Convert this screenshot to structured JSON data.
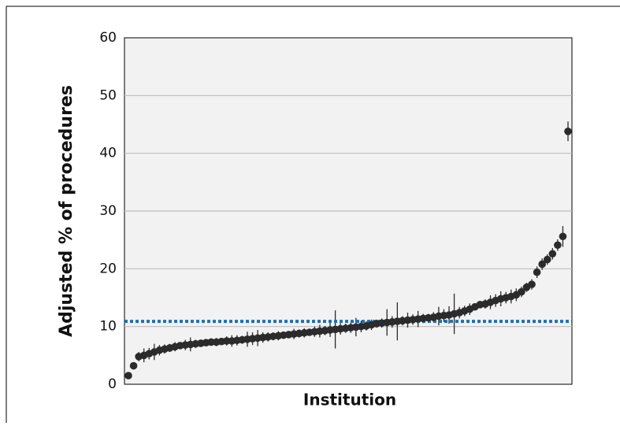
{
  "chart_data": {
    "type": "errorbar",
    "ylabel": "Adjusted % of procedures",
    "xlabel": "Institution",
    "values": [
      1.5,
      3.2,
      4.8,
      5.0,
      5.3,
      5.6,
      5.9,
      6.1,
      6.3,
      6.5,
      6.7,
      6.8,
      6.9,
      7.0,
      7.1,
      7.2,
      7.3,
      7.3,
      7.4,
      7.5,
      7.5,
      7.6,
      7.7,
      7.8,
      7.9,
      8.0,
      8.1,
      8.2,
      8.3,
      8.4,
      8.5,
      8.6,
      8.7,
      8.8,
      8.9,
      9.0,
      9.1,
      9.2,
      9.3,
      9.4,
      9.5,
      9.6,
      9.7,
      9.8,
      9.9,
      10.0,
      10.1,
      10.3,
      10.5,
      10.6,
      10.7,
      10.8,
      10.9,
      11.0,
      11.1,
      11.2,
      11.3,
      11.4,
      11.5,
      11.6,
      11.8,
      11.9,
      12.0,
      12.2,
      12.4,
      12.7,
      13.0,
      13.4,
      13.8,
      13.9,
      14.2,
      14.5,
      14.8,
      15.0,
      15.2,
      15.5,
      16.0,
      16.8,
      17.3,
      19.4,
      20.8,
      21.6,
      22.6,
      24.1,
      25.6,
      43.8
    ],
    "errors": [
      0.3,
      0.5,
      0.8,
      1.2,
      1.0,
      1.4,
      0.9,
      0.8,
      0.7,
      0.8,
      0.6,
      0.9,
      1.2,
      0.7,
      0.6,
      0.5,
      0.6,
      0.7,
      0.6,
      0.8,
      1.0,
      0.9,
      0.7,
      1.3,
      1.1,
      1.4,
      0.9,
      0.8,
      0.7,
      0.8,
      0.6,
      0.5,
      0.9,
      0.7,
      0.8,
      0.6,
      0.9,
      1.1,
      0.8,
      1.2,
      3.3,
      1.0,
      0.8,
      0.9,
      1.6,
      1.0,
      0.8,
      0.9,
      0.7,
      0.8,
      2.3,
      1.0,
      3.3,
      0.8,
      1.3,
      0.9,
      1.4,
      0.8,
      0.7,
      0.9,
      1.6,
      1.1,
      1.5,
      3.5,
      1.0,
      0.9,
      1.0,
      0.6,
      0.5,
      0.8,
      1.2,
      1.1,
      1.3,
      1.0,
      1.2,
      1.1,
      0.9,
      0.8,
      0.9,
      1.0,
      1.0,
      0.9,
      1.0,
      1.0,
      1.8,
      1.7
    ],
    "color": "#2b2b2b",
    "reference_line": 10.9,
    "reference_color": "#1f6fb4",
    "ylim": [
      0,
      60
    ],
    "yticks": [
      0,
      10,
      20,
      30,
      40,
      50,
      60
    ],
    "grid": true
  }
}
